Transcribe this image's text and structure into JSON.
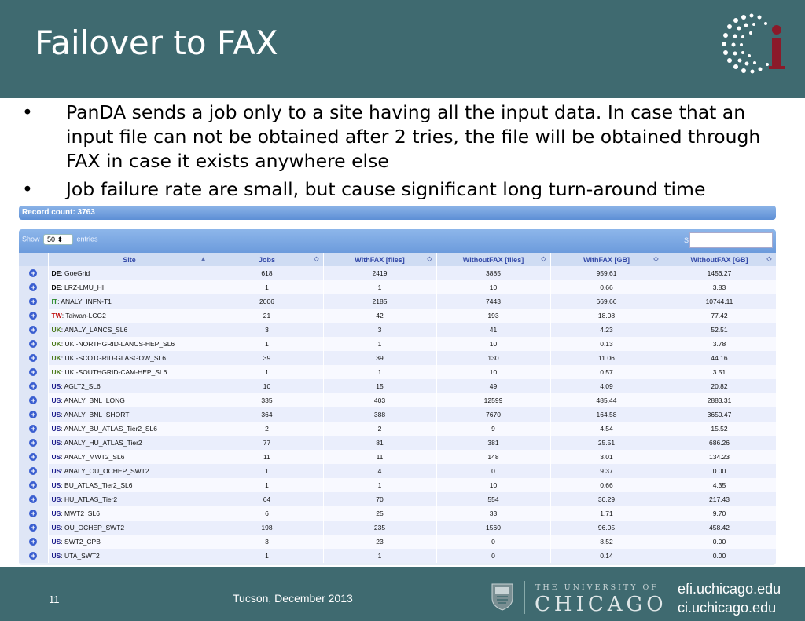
{
  "slide": {
    "title": "Failover to FAX",
    "bullets": [
      "PanDA sends a job only to a site having all the input data. In case that an input file can not be obtained after 2 tries, the file will be obtained through FAX in case it exists anywhere else",
      "Job failure rate are small, but cause significant long turn-around time"
    ],
    "bullet_glyph": "•"
  },
  "table": {
    "record_count": "Record count: 3763",
    "show_prefix": "Show",
    "show_value": "50",
    "show_suffix": "entries",
    "search_label": "Search:",
    "columns": [
      "Site",
      "Jobs",
      "WithFAX [files]",
      "WithoutFAX [files]",
      "WithFAX [GB]",
      "WithoutFAX [GB]"
    ],
    "rows": [
      {
        "cc": "DE",
        "cc_color": "#000000",
        "name": "GoeGrid",
        "v": [
          "618",
          "2419",
          "3885",
          "959.61",
          "1456.27"
        ]
      },
      {
        "cc": "DE",
        "cc_color": "#000000",
        "name": "LRZ-LMU_HI",
        "v": [
          "1",
          "1",
          "10",
          "0.66",
          "3.83"
        ]
      },
      {
        "cc": "IT",
        "cc_color": "#2e8b2e",
        "name": "ANALY_INFN-T1",
        "v": [
          "2006",
          "2185",
          "7443",
          "669.66",
          "10744.11"
        ]
      },
      {
        "cc": "TW",
        "cc_color": "#c01010",
        "name": "Taiwan-LCG2",
        "v": [
          "21",
          "42",
          "193",
          "18.08",
          "77.42"
        ]
      },
      {
        "cc": "UK",
        "cc_color": "#4a7a1a",
        "name": "ANALY_LANCS_SL6",
        "v": [
          "3",
          "3",
          "41",
          "4.23",
          "52.51"
        ]
      },
      {
        "cc": "UK",
        "cc_color": "#4a7a1a",
        "name": "UKI-NORTHGRID-LANCS-HEP_SL6",
        "v": [
          "1",
          "1",
          "10",
          "0.13",
          "3.78"
        ]
      },
      {
        "cc": "UK",
        "cc_color": "#4a7a1a",
        "name": "UKI-SCOTGRID-GLASGOW_SL6",
        "v": [
          "39",
          "39",
          "130",
          "11.06",
          "44.16"
        ]
      },
      {
        "cc": "UK",
        "cc_color": "#4a7a1a",
        "name": "UKI-SOUTHGRID-CAM-HEP_SL6",
        "v": [
          "1",
          "1",
          "10",
          "0.57",
          "3.51"
        ]
      },
      {
        "cc": "US",
        "cc_color": "#1a1a8a",
        "name": "AGLT2_SL6",
        "v": [
          "10",
          "15",
          "49",
          "4.09",
          "20.82"
        ]
      },
      {
        "cc": "US",
        "cc_color": "#1a1a8a",
        "name": "ANALY_BNL_LONG",
        "v": [
          "335",
          "403",
          "12599",
          "485.44",
          "2883.31"
        ]
      },
      {
        "cc": "US",
        "cc_color": "#1a1a8a",
        "name": "ANALY_BNL_SHORT",
        "v": [
          "364",
          "388",
          "7670",
          "164.58",
          "3650.47"
        ]
      },
      {
        "cc": "US",
        "cc_color": "#1a1a8a",
        "name": "ANALY_BU_ATLAS_Tier2_SL6",
        "v": [
          "2",
          "2",
          "9",
          "4.54",
          "15.52"
        ]
      },
      {
        "cc": "US",
        "cc_color": "#1a1a8a",
        "name": "ANALY_HU_ATLAS_Tier2",
        "v": [
          "77",
          "81",
          "381",
          "25.51",
          "686.26"
        ]
      },
      {
        "cc": "US",
        "cc_color": "#1a1a8a",
        "name": "ANALY_MWT2_SL6",
        "v": [
          "11",
          "11",
          "148",
          "3.01",
          "134.23"
        ]
      },
      {
        "cc": "US",
        "cc_color": "#1a1a8a",
        "name": "ANALY_OU_OCHEP_SWT2",
        "v": [
          "1",
          "4",
          "0",
          "9.37",
          "0.00"
        ]
      },
      {
        "cc": "US",
        "cc_color": "#1a1a8a",
        "name": "BU_ATLAS_Tier2_SL6",
        "v": [
          "1",
          "1",
          "10",
          "0.66",
          "4.35"
        ]
      },
      {
        "cc": "US",
        "cc_color": "#1a1a8a",
        "name": "HU_ATLAS_Tier2",
        "v": [
          "64",
          "70",
          "554",
          "30.29",
          "217.43"
        ]
      },
      {
        "cc": "US",
        "cc_color": "#1a1a8a",
        "name": "MWT2_SL6",
        "v": [
          "6",
          "25",
          "33",
          "1.71",
          "9.70"
        ]
      },
      {
        "cc": "US",
        "cc_color": "#1a1a8a",
        "name": "OU_OCHEP_SWT2",
        "v": [
          "198",
          "235",
          "1560",
          "96.05",
          "458.42"
        ]
      },
      {
        "cc": "US",
        "cc_color": "#1a1a8a",
        "name": "SWT2_CPB",
        "v": [
          "3",
          "23",
          "0",
          "8.52",
          "0.00"
        ]
      },
      {
        "cc": "US",
        "cc_color": "#1a1a8a",
        "name": "UTA_SWT2",
        "v": [
          "1",
          "1",
          "0",
          "0.14",
          "0.00"
        ]
      }
    ]
  },
  "footer": {
    "page_number": "11",
    "event": "Tucson, December 2013",
    "university_small": "THE UNIVERSITY OF",
    "university_big": "CHICAGO",
    "url1": "efi.uchicago.edu",
    "url2": "ci.uchicago.edu"
  },
  "colors": {
    "header_bg": "#3f6a70",
    "logo_red": "#8b1a2a",
    "table_header_text": "#3349a8"
  }
}
